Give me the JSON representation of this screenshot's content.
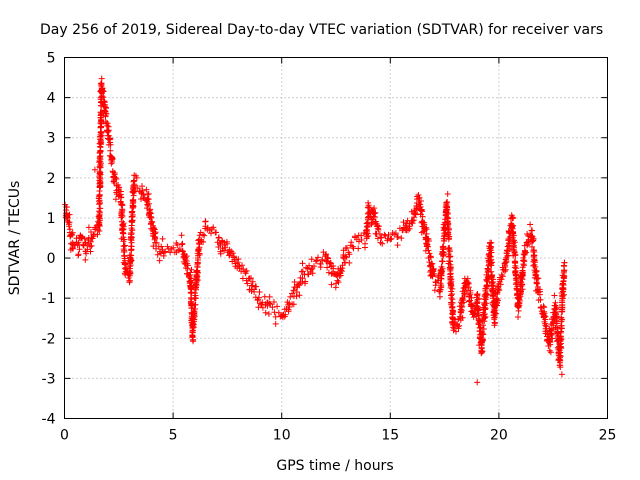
{
  "chart_data": {
    "type": "scatter",
    "title": "Day 256 of 2019, Sidereal Day-to-day VTEC variation (SDTVAR) for receiver vars",
    "xlabel": "GPS time / hours",
    "ylabel": "SDTVAR / TECUs",
    "xlim": [
      0,
      25
    ],
    "ylim": [
      -4,
      5
    ],
    "x_ticks": [
      0,
      5,
      10,
      15,
      20,
      25
    ],
    "y_ticks": [
      -4,
      -3,
      -2,
      -1,
      0,
      1,
      2,
      3,
      4,
      5
    ],
    "grid": true,
    "marker": "+",
    "series_color": "#ff0000",
    "series": [
      {
        "name": "SDTVAR",
        "key_points": [
          [
            0.0,
            1.2
          ],
          [
            0.2,
            0.8
          ],
          [
            0.4,
            0.3
          ],
          [
            0.6,
            0.2
          ],
          [
            0.8,
            0.5
          ],
          [
            1.0,
            0.2
          ],
          [
            1.3,
            0.5
          ],
          [
            1.6,
            0.8
          ],
          [
            1.7,
            4.3
          ],
          [
            1.9,
            3.5
          ],
          [
            2.1,
            2.8
          ],
          [
            2.3,
            2.0
          ],
          [
            2.6,
            1.5
          ],
          [
            2.8,
            -0.3
          ],
          [
            3.0,
            -0.5
          ],
          [
            3.2,
            2.0
          ],
          [
            3.5,
            1.8
          ],
          [
            3.8,
            1.5
          ],
          [
            4.2,
            0.3
          ],
          [
            4.5,
            0.1
          ],
          [
            5.0,
            0.2
          ],
          [
            5.4,
            0.3
          ],
          [
            5.8,
            -0.5
          ],
          [
            5.9,
            -2.0
          ],
          [
            6.2,
            0.4
          ],
          [
            6.6,
            0.7
          ],
          [
            7.0,
            0.6
          ],
          [
            7.5,
            0.2
          ],
          [
            8.0,
            -0.2
          ],
          [
            8.5,
            -0.6
          ],
          [
            9.0,
            -1.0
          ],
          [
            9.5,
            -1.3
          ],
          [
            10.0,
            -1.4
          ],
          [
            10.5,
            -1.0
          ],
          [
            11.0,
            -0.5
          ],
          [
            11.5,
            -0.2
          ],
          [
            12.0,
            0.0
          ],
          [
            12.5,
            -0.6
          ],
          [
            13.0,
            0.2
          ],
          [
            13.5,
            0.4
          ],
          [
            13.9,
            0.5
          ],
          [
            14.0,
            1.3
          ],
          [
            14.5,
            0.5
          ],
          [
            15.0,
            0.4
          ],
          [
            15.5,
            0.6
          ],
          [
            16.0,
            1.0
          ],
          [
            16.3,
            1.5
          ],
          [
            16.7,
            0.3
          ],
          [
            17.0,
            -0.5
          ],
          [
            17.3,
            -0.8
          ],
          [
            17.6,
            1.4
          ],
          [
            17.9,
            -1.8
          ],
          [
            18.2,
            -1.5
          ],
          [
            18.5,
            -0.5
          ],
          [
            18.8,
            -1.3
          ],
          [
            19.0,
            -1.0
          ],
          [
            19.2,
            -2.3
          ],
          [
            19.3,
            -1.5
          ],
          [
            19.6,
            0.3
          ],
          [
            19.8,
            -1.5
          ],
          [
            20.0,
            -0.7
          ],
          [
            20.3,
            -0.2
          ],
          [
            20.6,
            1.0
          ],
          [
            20.9,
            -1.3
          ],
          [
            21.2,
            0.2
          ],
          [
            21.5,
            0.6
          ],
          [
            21.8,
            -0.8
          ],
          [
            22.0,
            -1.2
          ],
          [
            22.3,
            -2.2
          ],
          [
            22.6,
            -1.2
          ],
          [
            22.8,
            -2.6
          ],
          [
            23.0,
            -0.2
          ]
        ],
        "outliers": [
          [
            19.0,
            -3.1
          ],
          [
            22.9,
            -2.9
          ],
          [
            1.4,
            2.2
          ],
          [
            1.7,
            3.9
          ],
          [
            4.0,
            1.0
          ],
          [
            0.1,
            1.1
          ],
          [
            21.3,
            0.6
          ]
        ]
      }
    ]
  }
}
